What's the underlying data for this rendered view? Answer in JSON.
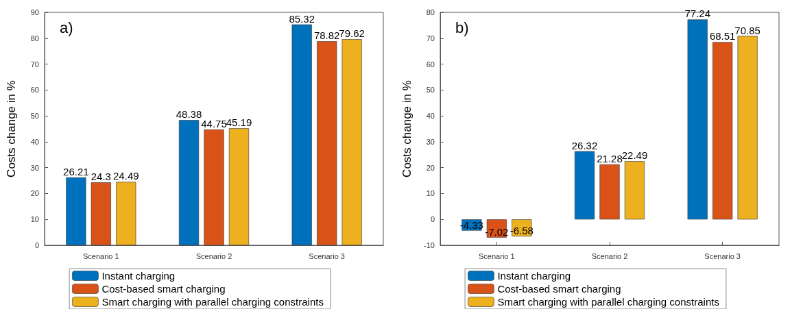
{
  "chart_data": [
    {
      "type": "bar",
      "title": "a)",
      "ylabel": "Costs change in %",
      "categories": [
        "Scenario 1",
        "Scenario 2",
        "Scenario 3"
      ],
      "series": [
        {
          "name": "Instant charging",
          "color": "#0072bd",
          "values": [
            26.21,
            48.38,
            85.32
          ]
        },
        {
          "name": "Cost-based smart charging",
          "color": "#d95319",
          "values": [
            24.3,
            44.75,
            78.82
          ]
        },
        {
          "name": "Smart charging with parallel charging constraints",
          "color": "#edb120",
          "values": [
            24.49,
            45.19,
            79.62
          ]
        }
      ],
      "ylim": [
        0,
        90
      ],
      "yticks": [
        0,
        10,
        20,
        30,
        40,
        50,
        60,
        70,
        80,
        90
      ],
      "data_labels": true,
      "grid": false,
      "legend": "bottom"
    },
    {
      "type": "bar",
      "title": "b)",
      "ylabel": "Costs change in %",
      "categories": [
        "Scenario 1",
        "Scenario 2",
        "Scenario 3"
      ],
      "series": [
        {
          "name": "Instant charging",
          "color": "#0072bd",
          "values": [
            -4.33,
            26.32,
            77.24
          ]
        },
        {
          "name": "Cost-based smart charging",
          "color": "#d95319",
          "values": [
            -7.02,
            21.28,
            68.51
          ]
        },
        {
          "name": "Smart charging with parallel charging constraints",
          "color": "#edb120",
          "values": [
            -6.58,
            22.49,
            70.85
          ]
        }
      ],
      "ylim": [
        -10,
        80
      ],
      "yticks": [
        -10,
        0,
        10,
        20,
        30,
        40,
        50,
        60,
        70,
        80
      ],
      "data_labels": true,
      "grid": false,
      "legend": "bottom"
    }
  ]
}
